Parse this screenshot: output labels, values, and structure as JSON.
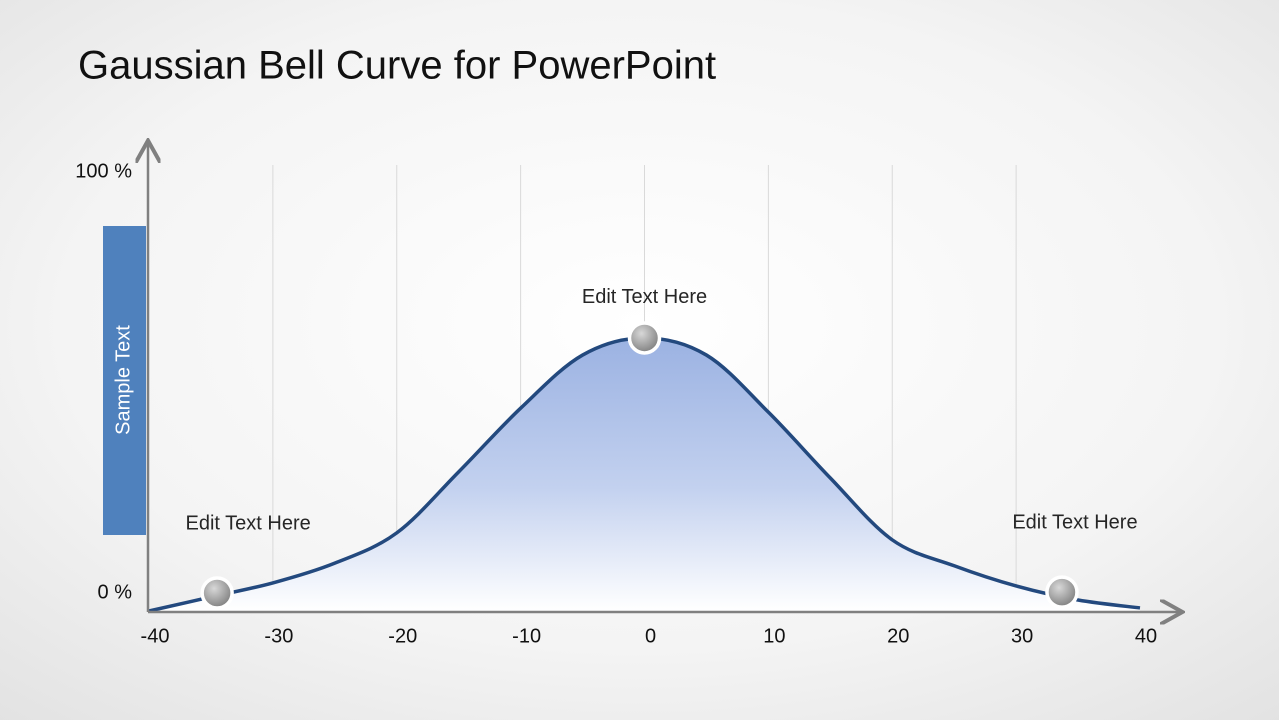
{
  "chart_data": {
    "type": "line",
    "title": "Gaussian Bell Curve for PowerPoint",
    "y_label": "Sample Text",
    "x": [
      -40,
      -35,
      -30,
      -25,
      -20,
      -15,
      -10,
      -5,
      0,
      5,
      10,
      15,
      20,
      25,
      30,
      35,
      40
    ],
    "series": [
      {
        "color": "#23497e",
        "values": [
          0,
          3.2,
          6.4,
          10.9,
          17.8,
          31.7,
          46.2,
          58.3,
          62.2,
          58.3,
          45.3,
          30.3,
          16.2,
          10.3,
          5.7,
          2.5,
          0.7
        ]
      }
    ],
    "markers": [
      {
        "x": -34.5,
        "y": 4.1,
        "label": "Edit Text Here"
      },
      {
        "x": 0,
        "y": 62.2,
        "label": "Edit Text Here"
      },
      {
        "x": 33.7,
        "y": 4.3,
        "label": "Edit Text Here"
      }
    ],
    "xlim": [
      -40,
      40
    ],
    "xticks": [
      -40,
      -30,
      -20,
      -10,
      0,
      10,
      20,
      30,
      40
    ],
    "ylim": [
      0,
      100
    ],
    "yticks": [
      {
        "value": 0,
        "label": "0 %"
      },
      {
        "value": 100,
        "label": "100 %"
      }
    ],
    "grid": true,
    "y_label_color": "#4f81bd"
  }
}
